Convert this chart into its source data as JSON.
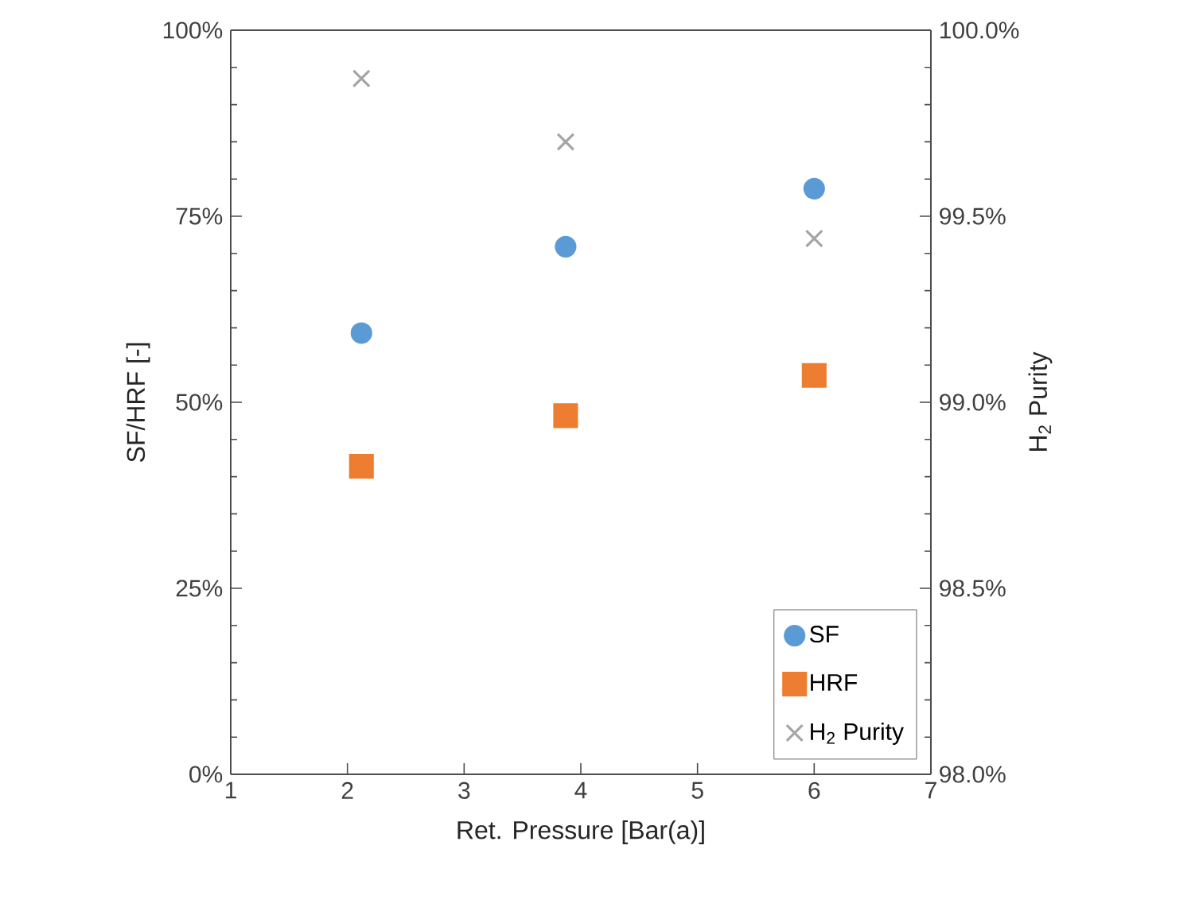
{
  "chart_data": {
    "type": "scatter",
    "xlabel": "Ret. Pressure [Bar(a)]",
    "ylabel": "SF/HRF [-]",
    "y2label": "H$_{2}$ Purity",
    "xlim": [
      1,
      7
    ],
    "xticks": [
      1,
      2,
      3,
      4,
      5,
      6,
      7
    ],
    "ylim": [
      0,
      100
    ],
    "yticks": [
      {
        "value": 0,
        "label": "0%"
      },
      {
        "value": 25,
        "label": "25%"
      },
      {
        "value": 50,
        "label": "50%"
      },
      {
        "value": 75,
        "label": "75%"
      },
      {
        "value": 100,
        "label": "100%"
      }
    ],
    "y2lim": [
      98,
      100
    ],
    "y2ticks": [
      {
        "value": 98,
        "label": "98.0%"
      },
      {
        "value": 98.5,
        "label": "98.5%"
      },
      {
        "value": 99,
        "label": "99.0%"
      },
      {
        "value": 99.5,
        "label": "99.5%"
      },
      {
        "value": 100,
        "label": "100.0%"
      }
    ],
    "grid": false,
    "legend": "bottom right",
    "series": [
      {
        "name": "SF",
        "color": "#5b9bd5",
        "marker": "circle",
        "x": [
          2.12,
          3.87,
          6.0
        ],
        "values": [
          59.3,
          70.9,
          78.7
        ]
      },
      {
        "name": "HRF",
        "color": "#ed7d31",
        "marker": "square",
        "x": [
          2.12,
          3.87,
          6.0
        ],
        "values": [
          41.4,
          48.2,
          53.6
        ]
      },
      {
        "name": "H$_{2}$ Purity",
        "color": "#a5a5a5",
        "marker": "cross",
        "axis": "y2",
        "x": [
          2.12,
          3.87,
          6.0
        ],
        "values": [
          99.87,
          99.7,
          99.44
        ]
      }
    ]
  }
}
